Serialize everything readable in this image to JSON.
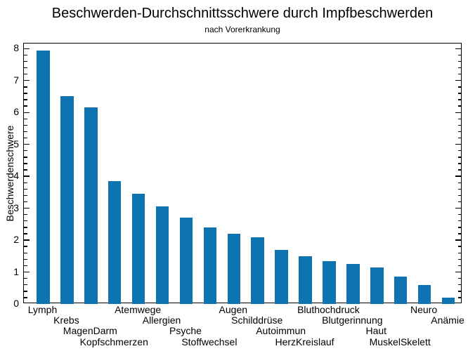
{
  "chart": {
    "title": "Beschwerden-Durchschnittsschwere durch Impfbeschwerden",
    "subtitle": "nach Vorerkrankung",
    "ylabel": "Beschwerdenschwere"
  },
  "chart_data": {
    "type": "bar",
    "title": "Beschwerden-Durchschnittsschwere durch Impfbeschwerden",
    "subtitle": "nach Vorerkrankung",
    "xlabel": "",
    "ylabel": "Beschwerdenschwere",
    "categories": [
      "Lymph",
      "Krebs",
      "MagenDarm",
      "Kopfschmerzen",
      "Atemwege",
      "Allergien",
      "Psyche",
      "Stoffwechsel",
      "Augen",
      "Schilddrüse",
      "Autoimmun",
      "HerzKreislauf",
      "Bluthochdruck",
      "Blutgerinnung",
      "Haut",
      "MuskelSkelett",
      "Neuro",
      "Anämie"
    ],
    "values": [
      7.95,
      6.5,
      6.15,
      3.85,
      3.45,
      3.05,
      2.7,
      2.4,
      2.2,
      2.1,
      1.7,
      1.5,
      1.35,
      1.25,
      1.15,
      0.85,
      0.6,
      0.2
    ],
    "ylim": [
      0,
      8.16
    ],
    "yticks": [
      0,
      1,
      2,
      3,
      4,
      5,
      6,
      7,
      8
    ],
    "minor_tick_step": 0.2,
    "bar_color": "#0e73b1",
    "axis_color": "#000000",
    "background_color": "#ffffff",
    "grid": false,
    "legend": false,
    "x_label_stagger_rows": 4
  }
}
